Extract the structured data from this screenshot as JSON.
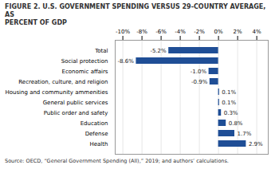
{
  "chart_data": {
    "type": "bar",
    "orientation": "horizontal",
    "title": "FIGURE 2. U.S. GOVERNMENT SPENDING VERSUS 29-COUNTRY AVERAGE, AS\nPERCENT OF GDP",
    "categories": [
      "Health",
      "Defense",
      "Education",
      "Public order and safety",
      "General public services",
      "Housing and community ammenities",
      "Recreation, culture, and religion",
      "Economic affairs",
      "Social protection",
      "Total"
    ],
    "values": [
      2.9,
      1.7,
      0.8,
      0.3,
      0.1,
      0.1,
      -0.9,
      -1.0,
      -8.6,
      -5.2
    ],
    "value_labels": [
      "2.9%",
      "1.7%",
      "0.8%",
      "0.3%",
      "0.1%",
      "0.1%",
      "-0.9%",
      "-1.0%",
      "-8.6%",
      "-5.2%"
    ],
    "data_labels": true,
    "color": "#1f4e96",
    "xlim": [
      -10.8,
      5.2
    ],
    "xticks": [
      {
        "value": -10,
        "label": "-10%"
      },
      {
        "value": -8,
        "label": "-8%"
      },
      {
        "value": -6,
        "label": "-6%"
      },
      {
        "value": -4,
        "label": "-4%"
      },
      {
        "value": -2,
        "label": "-2%"
      },
      {
        "value": 0,
        "label": "0%"
      },
      {
        "value": 2,
        "label": "2%"
      },
      {
        "value": 4,
        "label": "4%"
      }
    ],
    "grid": true,
    "source": "Source: OECD, “General Government Spending (All),” 2019; and authors’ calculations."
  }
}
